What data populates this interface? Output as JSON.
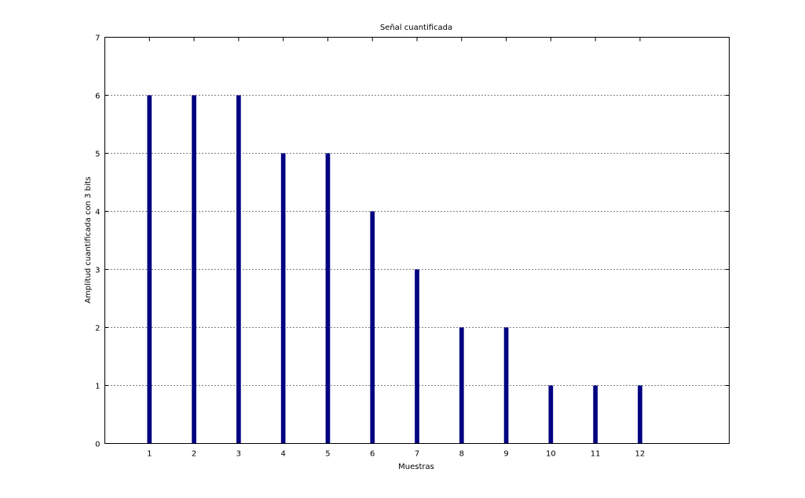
{
  "chart_data": {
    "type": "bar",
    "title": "Señal cuantificada",
    "x_label": "Muestras",
    "y_label": "Amplitud cuantificada con 3 bits",
    "x": [
      1,
      2,
      3,
      4,
      5,
      6,
      7,
      8,
      9,
      10,
      11,
      12
    ],
    "values": [
      6,
      6,
      6,
      5,
      5,
      4,
      3,
      2,
      2,
      1,
      1,
      1
    ],
    "color": "#000080",
    "xlim": [
      0,
      14
    ],
    "xticks": [
      1,
      2,
      3,
      4,
      5,
      6,
      7,
      8,
      9,
      10,
      11,
      12
    ],
    "ylim": [
      0,
      7
    ],
    "yticks": [
      0,
      1,
      2,
      3,
      4,
      5,
      6,
      7
    ],
    "grid": true
  }
}
